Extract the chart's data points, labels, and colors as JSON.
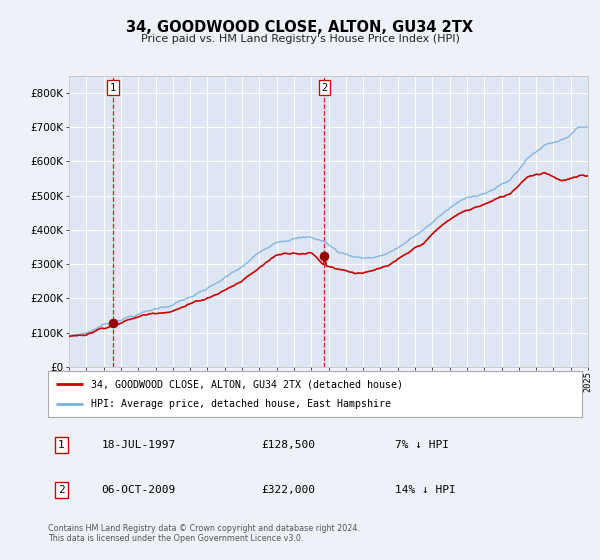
{
  "title": "34, GOODWOOD CLOSE, ALTON, GU34 2TX",
  "subtitle": "Price paid vs. HM Land Registry's House Price Index (HPI)",
  "legend_line1": "34, GOODWOOD CLOSE, ALTON, GU34 2TX (detached house)",
  "legend_line2": "HPI: Average price, detached house, East Hampshire",
  "annotation1_label": "1",
  "annotation1_date": "18-JUL-1997",
  "annotation1_price": "£128,500",
  "annotation1_hpi": "7% ↓ HPI",
  "annotation2_label": "2",
  "annotation2_date": "06-OCT-2009",
  "annotation2_price": "£322,000",
  "annotation2_hpi": "14% ↓ HPI",
  "footnote": "Contains HM Land Registry data © Crown copyright and database right 2024.\nThis data is licensed under the Open Government Licence v3.0.",
  "hpi_color": "#7ab0de",
  "price_color": "#cc0000",
  "dot_color": "#990000",
  "vline_color": "#cc0000",
  "bg_color": "#eef2f8",
  "plot_bg": "#dde6f2",
  "grid_color": "#ffffff",
  "ylim": [
    0,
    850000
  ],
  "yticks": [
    0,
    100000,
    200000,
    300000,
    400000,
    500000,
    600000,
    700000,
    800000
  ],
  "year_start": 1995,
  "year_end": 2025,
  "sale1_year": 1997.54,
  "sale1_price": 128500,
  "sale2_year": 2009.76,
  "sale2_price": 322000
}
